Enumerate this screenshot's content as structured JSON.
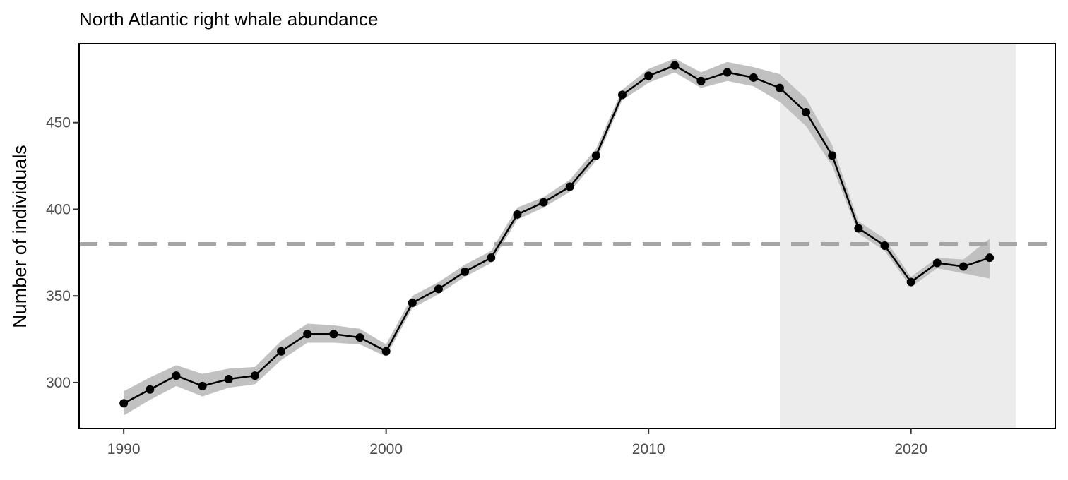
{
  "chart_data": {
    "type": "line",
    "title": "North Atlantic right whale abundance",
    "xlabel": "",
    "ylabel": "Number of individuals",
    "xlim": [
      1988.3,
      2025.5
    ],
    "ylim": [
      273.5,
      495.5
    ],
    "x_ticks": [
      1990,
      2000,
      2010,
      2020
    ],
    "y_ticks": [
      300,
      350,
      400,
      450
    ],
    "grid": false,
    "legend": "none",
    "shaded_region": {
      "x_start": 2015,
      "x_end": 2024,
      "color": "#ececec"
    },
    "reference_line": {
      "y": 380,
      "style": "dashed",
      "color": "#a6a6a6"
    },
    "series": [
      {
        "x": [
          1990,
          1991,
          1992,
          1993,
          1994,
          1995,
          1996,
          1997,
          1998,
          1999,
          2000,
          2001,
          2002,
          2003,
          2004,
          2005,
          2006,
          2007,
          2008,
          2009,
          2010,
          2011,
          2012,
          2013,
          2014,
          2015,
          2016,
          2017,
          2018,
          2019,
          2020,
          2021,
          2022,
          2023
        ],
        "y": [
          288,
          296,
          304,
          298,
          302,
          304,
          318,
          328,
          328,
          326,
          318,
          346,
          354,
          364,
          372,
          397,
          404,
          413,
          431,
          466,
          477,
          483,
          474,
          479,
          476,
          470,
          456,
          431,
          389,
          379,
          358,
          369,
          367,
          372
        ],
        "lower": [
          281,
          290,
          298,
          292,
          297,
          299,
          313,
          323,
          323,
          322,
          315,
          343,
          351,
          361,
          369,
          394,
          401,
          410,
          428,
          463,
          473,
          479,
          470,
          474,
          471,
          462,
          448,
          425,
          386,
          376,
          355,
          366,
          363,
          360
        ],
        "upper": [
          295,
          303,
          310,
          305,
          308,
          309,
          324,
          334,
          333,
          331,
          322,
          350,
          358,
          368,
          376,
          401,
          407,
          417,
          435,
          469,
          481,
          487,
          479,
          485,
          482,
          478,
          464,
          437,
          393,
          383,
          361,
          372,
          371,
          383
        ],
        "line_color": "#000000",
        "band_color": "#bebebe"
      }
    ]
  }
}
